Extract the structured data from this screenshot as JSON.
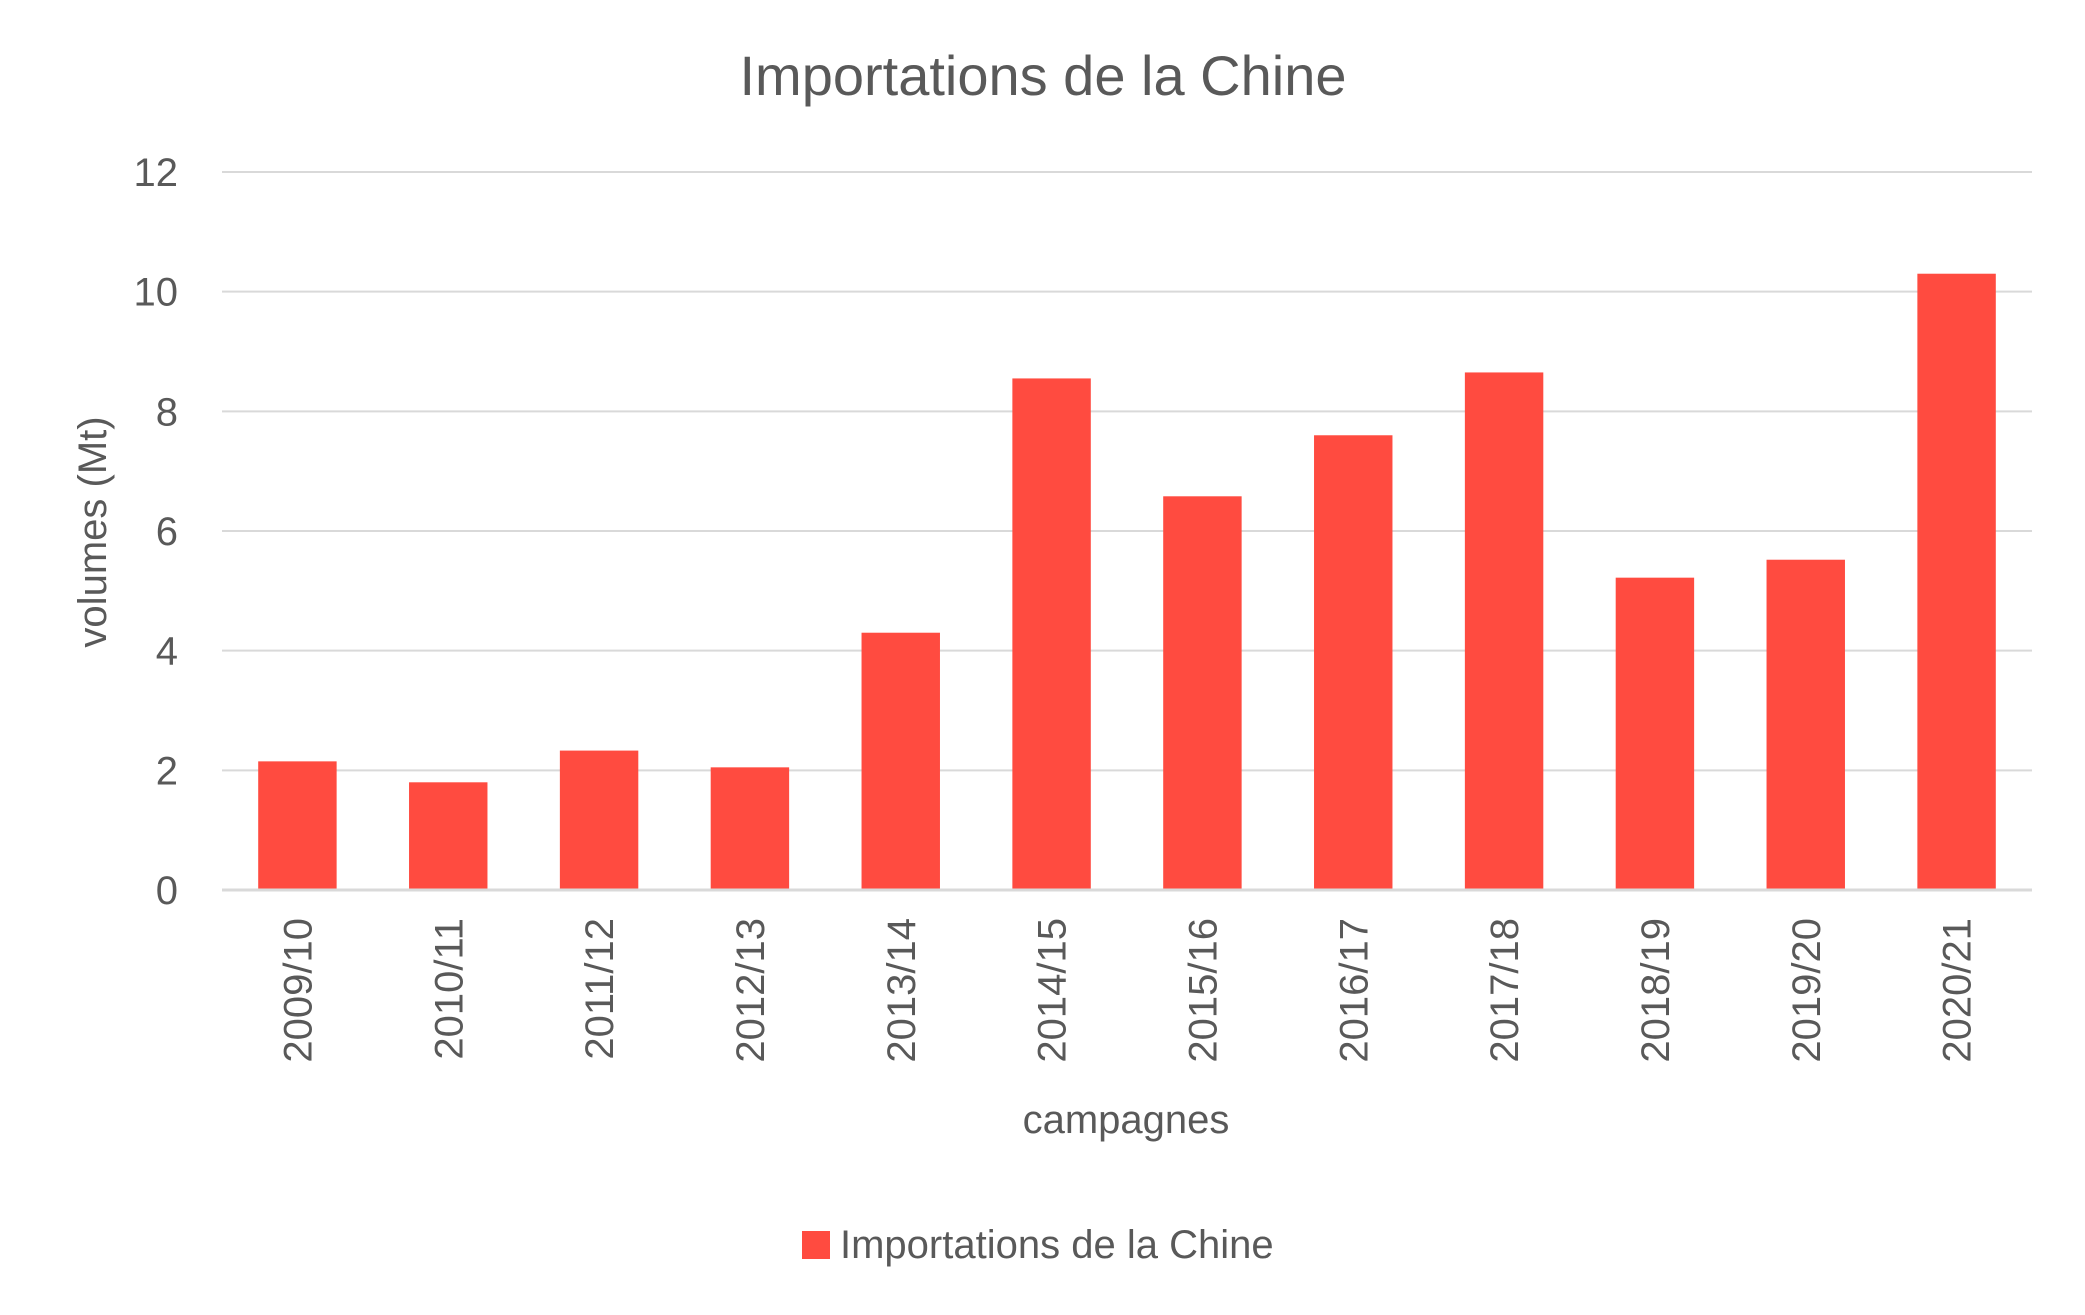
{
  "chart_data": {
    "type": "bar",
    "title": "Importations de la Chine",
    "xlabel": "campagnes",
    "ylabel": "volumes (Mt)",
    "categories": [
      "2009/10",
      "2010/11",
      "2011/12",
      "2012/13",
      "2013/14",
      "2014/15",
      "2015/16",
      "2016/17",
      "2017/18",
      "2018/19",
      "2019/20",
      "2020/21"
    ],
    "series": [
      {
        "name": "Importations de la Chine",
        "color": "#FF4B40",
        "values": [
          2.15,
          1.8,
          2.33,
          2.05,
          4.3,
          8.55,
          6.58,
          7.6,
          8.65,
          5.22,
          5.52,
          10.3
        ]
      }
    ],
    "ylim": [
      0,
      12
    ],
    "yticks": [
      "0",
      "2",
      "4",
      "6",
      "8",
      "10",
      "12"
    ],
    "grid": true,
    "legend_position": "bottom"
  }
}
